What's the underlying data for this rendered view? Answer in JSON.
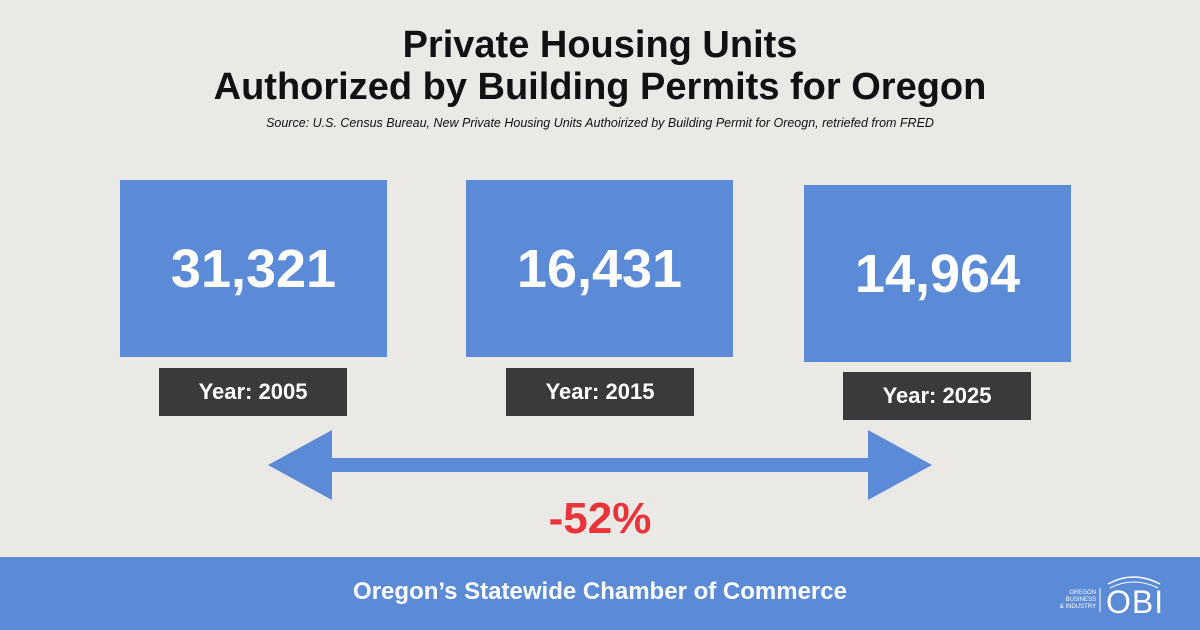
{
  "header": {
    "title_lines": [
      "Private Housing Units",
      "Authorized by Building Permits for Oregon"
    ],
    "source": "Source: U.S. Census Bureau, New Private  Housing Units Authoirized by Building Permit for Oreogn, retriefed from FRED"
  },
  "cards": [
    {
      "value": "31,321",
      "label": "Year: 2005"
    },
    {
      "value": "16,431",
      "label": "Year: 2015"
    },
    {
      "value": "14,964",
      "label": "Year: 2025"
    }
  ],
  "change": "-52%",
  "footer": {
    "text": "Oregon’s Statewide Chamber of Commerce",
    "logo_small": [
      "OREGON",
      "BUSINESS",
      "& INDUSTRY"
    ],
    "logo": "OBI"
  }
}
